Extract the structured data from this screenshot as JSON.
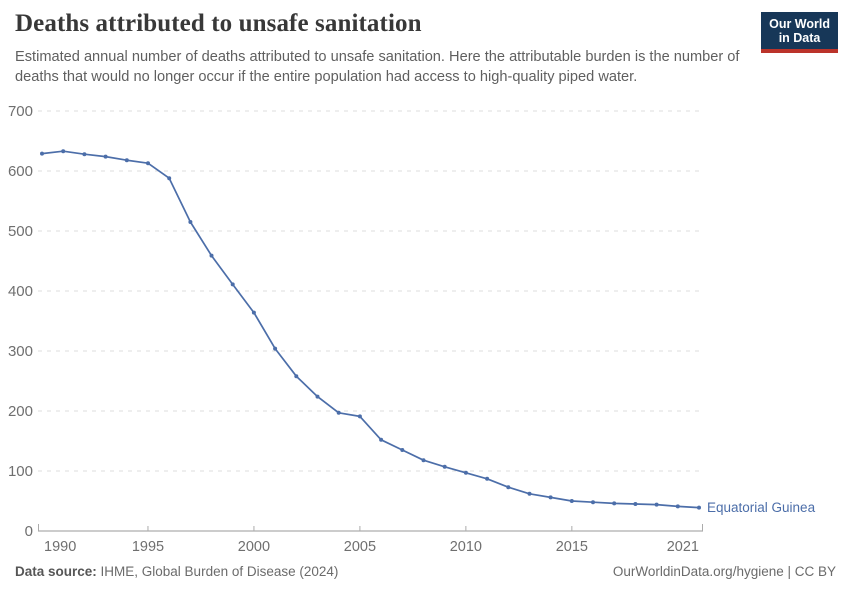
{
  "header": {
    "title": "Deaths attributed to unsafe sanitation",
    "subtitle": "Estimated annual number of deaths attributed to unsafe sanitation. Here the attributable burden is the number of deaths that would no longer occur if the entire population had access to high-quality piped water.",
    "logo": {
      "line1": "Our World",
      "line2": "in Data",
      "bg_color": "#173758",
      "stripe_color": "#bb332a"
    }
  },
  "chart_data": {
    "type": "line",
    "title": "Deaths attributed to unsafe sanitation",
    "xlabel": "",
    "ylabel": "",
    "ylim": [
      0,
      700
    ],
    "yticks": [
      0,
      100,
      200,
      300,
      400,
      500,
      600,
      700
    ],
    "xticks": [
      1990,
      1995,
      2000,
      2005,
      2010,
      2015,
      2021
    ],
    "grid": "horizontal-dashed",
    "legend_position": "end-of-line-label",
    "x": [
      1990,
      1991,
      1992,
      1993,
      1994,
      1995,
      1996,
      1997,
      1998,
      1999,
      2000,
      2001,
      2002,
      2003,
      2004,
      2005,
      2006,
      2007,
      2008,
      2009,
      2010,
      2011,
      2012,
      2013,
      2014,
      2015,
      2016,
      2017,
      2018,
      2019,
      2020,
      2021
    ],
    "series": [
      {
        "name": "Equatorial Guinea",
        "color": "#4c6ea9",
        "values": [
          629,
          633,
          628,
          624,
          618,
          613,
          588,
          515,
          459,
          411,
          364,
          304,
          258,
          224,
          197,
          191,
          152,
          135,
          118,
          107,
          97,
          87,
          73,
          62,
          56,
          50,
          48,
          46,
          45,
          44,
          41,
          39
        ]
      }
    ],
    "entity_label": "Equatorial Guinea"
  },
  "footer": {
    "source_label": "Data source:",
    "source_value": " IHME, Global Burden of Disease (2024)",
    "credit": "OurWorldinData.org/hygiene | CC BY"
  }
}
